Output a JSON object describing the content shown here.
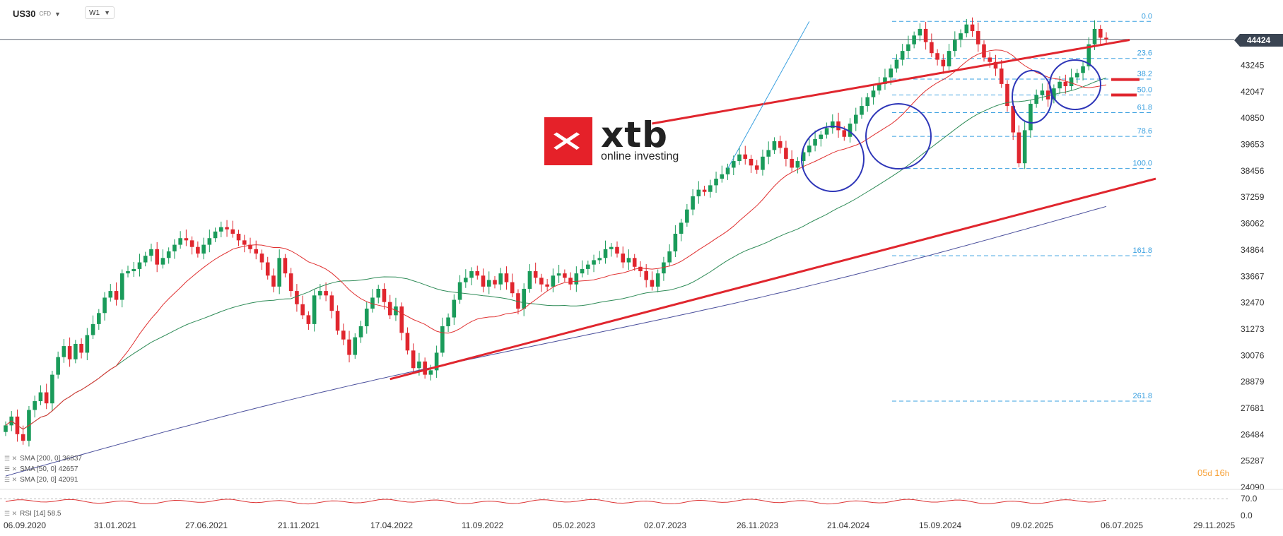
{
  "toolbar": {
    "symbol": "US30",
    "symbol_type": "CFD",
    "timeframe": "W1",
    "caret_icon": "chevron-down-icon"
  },
  "logo": {
    "brand": "xtb",
    "tagline": "online investing"
  },
  "current_price": "44424",
  "countdown": {
    "days": "05",
    "day_unit": "d",
    "hours": "16",
    "hour_unit": "h"
  },
  "indicators": [
    {
      "label": "SMA [200, 0] 36837",
      "color": "#4a4f9c"
    },
    {
      "label": "SMA [50, 0] 42657",
      "color": "#2e8b57"
    },
    {
      "label": "SMA [20, 0] 42091",
      "color": "#e03030"
    }
  ],
  "rsi": {
    "label": "RSI [14] 58.5",
    "levels": [
      "70.0",
      "0.0"
    ],
    "color": "#d33"
  },
  "chart_data": {
    "type": "candlestick",
    "x_labels": [
      "06.09.2020",
      "31.01.2021",
      "27.06.2021",
      "21.11.2021",
      "17.04.2022",
      "11.09.2022",
      "05.02.2023",
      "02.07.2023",
      "26.11.2023",
      "21.04.2024",
      "15.09.2024",
      "09.02.2025",
      "06.07.2025",
      "29.11.2025"
    ],
    "y_ticks": [
      44424,
      43245,
      42047,
      40850,
      39653,
      38456,
      37259,
      36062,
      34864,
      33667,
      32470,
      31273,
      30076,
      28879,
      27681,
      26484,
      25287,
      24090
    ],
    "y_tick_labels": [
      "44424",
      "43245",
      "42047",
      "40850",
      "39653",
      "38456",
      "37259",
      "36062",
      "34864",
      "33667",
      "32470",
      "31273",
      "30076",
      "28879",
      "27681",
      "26484",
      "25287",
      "24090"
    ],
    "ylim": [
      24090,
      45250
    ],
    "fibonacci": {
      "levels": [
        {
          "label": "0.0",
          "value": 45240
        },
        {
          "label": "23.6",
          "value": 43560
        },
        {
          "label": "38.2",
          "value": 42620
        },
        {
          "label": "50.0",
          "value": 41900
        },
        {
          "label": "61.8",
          "value": 41100
        },
        {
          "label": "78.6",
          "value": 40020
        },
        {
          "label": "100.0",
          "value": 38560
        },
        {
          "label": "161.8",
          "value": 34600
        },
        {
          "label": "261.8",
          "value": 28000
        }
      ]
    },
    "close_series": [
      26900,
      27300,
      26500,
      26200,
      27600,
      28000,
      28400,
      27900,
      29200,
      30000,
      30500,
      29900,
      30600,
      30200,
      31000,
      31500,
      32000,
      32700,
      33000,
      32600,
      33800,
      33900,
      34000,
      34300,
      34600,
      34900,
      34200,
      34500,
      34800,
      35100,
      35400,
      35300,
      35000,
      34700,
      35100,
      35400,
      35700,
      35900,
      35800,
      35600,
      35300,
      35100,
      34900,
      34700,
      34300,
      33700,
      33200,
      34500,
      33800,
      33000,
      32400,
      31900,
      31500,
      32800,
      33000,
      32800,
      32100,
      31200,
      30800,
      30100,
      30900,
      31400,
      32200,
      32700,
      33100,
      32500,
      31900,
      32300,
      31100,
      30300,
      29500,
      29800,
      29200,
      29400,
      30200,
      31400,
      31800,
      32600,
      33400,
      33600,
      33900,
      33700,
      33200,
      33500,
      33300,
      33800,
      33400,
      32900,
      32200,
      33100,
      33900,
      33600,
      33300,
      33200,
      33700,
      33800,
      33600,
      33300,
      33800,
      34000,
      34200,
      34400,
      34500,
      34900,
      35000,
      34700,
      34300,
      34500,
      34100,
      33900,
      33500,
      33200,
      33800,
      34300,
      34800,
      35600,
      36100,
      36700,
      37300,
      37600,
      37500,
      37800,
      38100,
      38300,
      38600,
      38900,
      39200,
      39000,
      38700,
      38500,
      39100,
      39400,
      39800,
      39500,
      39000,
      38600,
      38900,
      39300,
      39600,
      39900,
      40100,
      40400,
      40700,
      40300,
      40000,
      40600,
      41000,
      41400,
      41800,
      42100,
      42400,
      42700,
      43100,
      43500,
      43900,
      44200,
      44600,
      44900,
      44300,
      43800,
      43500,
      43200,
      43900,
      44400,
      44700,
      45100,
      44800,
      44200,
      43600,
      43400,
      43100,
      42400,
      41400,
      40200,
      38800,
      40300,
      41500,
      41900,
      42100,
      41700,
      42200,
      42500,
      42300,
      42700,
      42900,
      43200,
      44200,
      44900,
      44500,
      44424
    ],
    "sma": [
      {
        "name": "SMA [200, 0] 36837",
        "period": 200,
        "color": "#4a4f9c"
      },
      {
        "name": "SMA [50, 0] 42657",
        "period": 50,
        "color": "#2e8b57"
      },
      {
        "name": "SMA [20, 0] 42091",
        "period": 20,
        "color": "#e03030"
      }
    ]
  }
}
